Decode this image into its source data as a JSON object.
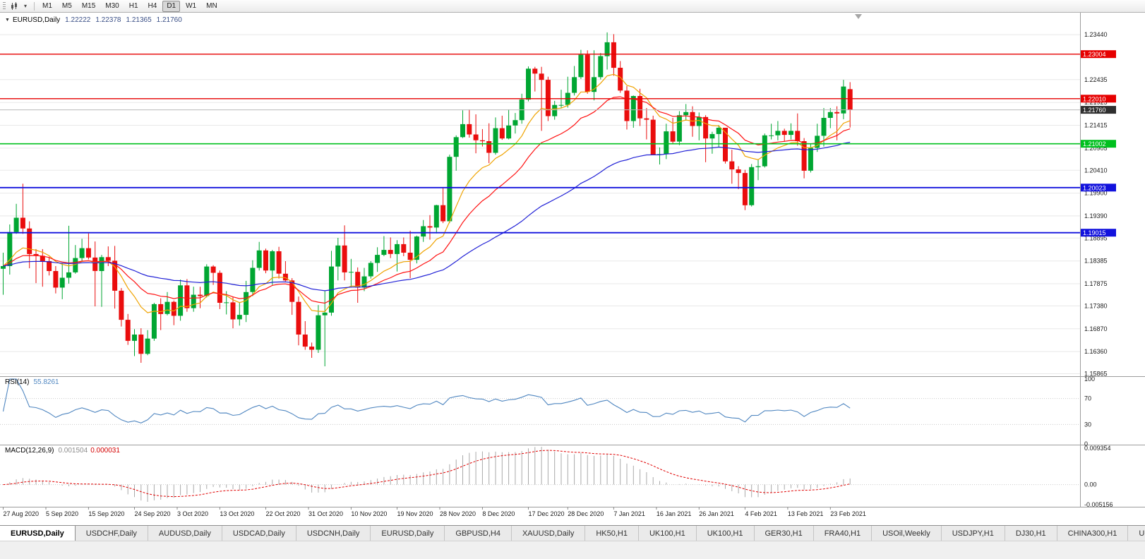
{
  "icons": {
    "one_click_arrow": "▼",
    "caret_down": "▾"
  },
  "toolbar": {
    "timeframes": [
      "M1",
      "M5",
      "M15",
      "M30",
      "H1",
      "H4",
      "D1",
      "W1",
      "MN"
    ],
    "active_timeframe": "D1"
  },
  "chart": {
    "symbol": "EURUSD,Daily",
    "ohlc": {
      "open": "1.22222",
      "high": "1.22378",
      "low": "1.21365",
      "close": "1.21760"
    },
    "colors": {
      "bull": "#00a632",
      "bear": "#ea0d0d"
    },
    "price_axis": {
      "ticks": [
        "1.23440",
        "1.22435",
        "1.21925",
        "1.21415",
        "1.20905",
        "1.20410",
        "1.19900",
        "1.19390",
        "1.18895",
        "1.18385",
        "1.17875",
        "1.17380",
        "1.16870",
        "1.16360",
        "1.15865"
      ]
    },
    "current_price": {
      "price": 1.2176,
      "label": "1.21760",
      "color": "#2f2f2f"
    },
    "hlines": [
      {
        "price": 1.23004,
        "label": "1.23004",
        "color": "#e60000",
        "width": 1.4
      },
      {
        "price": 1.2201,
        "label": "1.22010",
        "color": "#e60000",
        "width": 1.4
      },
      {
        "price": 1.21002,
        "label": "1.21002",
        "color": "#00c01e",
        "width": 1.6
      },
      {
        "price": 1.20023,
        "label": "1.20023",
        "color": "#1212dd",
        "width": 1.8
      },
      {
        "price": 1.19015,
        "label": "1.19015",
        "color": "#1212dd",
        "width": 1.8
      }
    ],
    "date_labels": [
      {
        "label": "27 Aug 2020",
        "index": 0
      },
      {
        "label": "5 Sep 2020",
        "index": 6.5
      },
      {
        "label": "15 Sep 2020",
        "index": 13
      },
      {
        "label": "24 Sep 2020",
        "index": 20
      },
      {
        "label": "3 Oct 2020",
        "index": 26.5
      },
      {
        "label": "13 Oct 2020",
        "index": 33
      },
      {
        "label": "22 Oct 2020",
        "index": 40
      },
      {
        "label": "31 Oct 2020",
        "index": 46.5
      },
      {
        "label": "10 Nov 2020",
        "index": 53
      },
      {
        "label": "19 Nov 2020",
        "index": 60
      },
      {
        "label": "28 Nov 2020",
        "index": 66.5
      },
      {
        "label": "8 Dec 2020",
        "index": 73
      },
      {
        "label": "17 Dec 2020",
        "index": 80
      },
      {
        "label": "28 Dec 2020",
        "index": 86
      },
      {
        "label": "7 Jan 2021",
        "index": 93
      },
      {
        "label": "16 Jan 2021",
        "index": 99.5
      },
      {
        "label": "26 Jan 2021",
        "index": 106
      },
      {
        "label": "4 Feb 2021",
        "index": 113
      },
      {
        "label": "13 Feb 2021",
        "index": 119.5
      },
      {
        "label": "23 Feb 2021",
        "index": 126
      }
    ]
  },
  "indicators": {
    "rsi": {
      "name": "RSI(14)",
      "period": 14,
      "value": "55.8261",
      "color": "#4f86c0",
      "levels": [
        100,
        70,
        30,
        0
      ]
    },
    "macd": {
      "name": "MACD(12,26,9)",
      "fast": 12,
      "slow": 26,
      "signal": 9,
      "value_main": "0.001504",
      "value_signal": "0.000031",
      "scale_max": 0.009354,
      "scale_min": -0.005156,
      "histogram_color": "#a9a9a9",
      "signal_color": "#e00000",
      "axis": [
        {
          "value": 0.009354,
          "label": "0.009354"
        },
        {
          "value": 0,
          "label": "0.00"
        },
        {
          "value": -0.005156,
          "label": "-0.005156"
        }
      ]
    }
  },
  "chart_data": {
    "type": "candlestick",
    "symbol": "EURUSD",
    "timeframe": "Daily",
    "title": "EURUSD,Daily",
    "ohlc_current": [
      1.22222,
      1.22378,
      1.21365,
      1.2176
    ],
    "y_range": [
      1.1581,
      1.2393
    ],
    "moving_averages": [
      {
        "name": "ma-fast-orange",
        "period": 10,
        "color": "#efa300"
      },
      {
        "name": "ma-mid-red",
        "period": 20,
        "color": "#ff1111"
      },
      {
        "name": "ma-slow-blue",
        "period": 55,
        "color": "#2121d6"
      }
    ],
    "candles": [
      [
        1.1821,
        1.1857,
        1.1763,
        1.1827
      ],
      [
        1.1827,
        1.192,
        1.1808,
        1.1903
      ],
      [
        1.1903,
        1.1966,
        1.1899,
        1.1935
      ],
      [
        1.1935,
        1.2011,
        1.1899,
        1.1911
      ],
      [
        1.1911,
        1.1927,
        1.1822,
        1.1854
      ],
      [
        1.1854,
        1.1865,
        1.1789,
        1.185
      ],
      [
        1.185,
        1.1865,
        1.1781,
        1.1838
      ],
      [
        1.1838,
        1.1848,
        1.1806,
        1.1816
      ],
      [
        1.1816,
        1.1827,
        1.1766,
        1.1779
      ],
      [
        1.1779,
        1.1833,
        1.1753,
        1.1801
      ],
      [
        1.1801,
        1.1917,
        1.1788,
        1.1813
      ],
      [
        1.1813,
        1.1874,
        1.181,
        1.1845
      ],
      [
        1.1845,
        1.1888,
        1.1838,
        1.1867
      ],
      [
        1.1867,
        1.19,
        1.1842,
        1.1846
      ],
      [
        1.1846,
        1.1882,
        1.1737,
        1.1816
      ],
      [
        1.1816,
        1.1852,
        1.1736,
        1.1847
      ],
      [
        1.1847,
        1.1871,
        1.1827,
        1.1839
      ],
      [
        1.1839,
        1.1872,
        1.1732,
        1.1772
      ],
      [
        1.1772,
        1.1778,
        1.1692,
        1.1707
      ],
      [
        1.1707,
        1.172,
        1.1651,
        1.166
      ],
      [
        1.166,
        1.1686,
        1.1626,
        1.1674
      ],
      [
        1.1674,
        1.1688,
        1.1611,
        1.1631
      ],
      [
        1.1631,
        1.1684,
        1.1628,
        1.1665
      ],
      [
        1.1665,
        1.1745,
        1.166,
        1.1742
      ],
      [
        1.1742,
        1.1755,
        1.1684,
        1.172
      ],
      [
        1.172,
        1.1769,
        1.1717,
        1.1747
      ],
      [
        1.1747,
        1.175,
        1.1695,
        1.1716
      ],
      [
        1.1716,
        1.1797,
        1.1705,
        1.1784
      ],
      [
        1.1784,
        1.1798,
        1.1725,
        1.1733
      ],
      [
        1.1733,
        1.1781,
        1.1725,
        1.1763
      ],
      [
        1.1763,
        1.1781,
        1.1733,
        1.176
      ],
      [
        1.176,
        1.1831,
        1.1757,
        1.1826
      ],
      [
        1.1826,
        1.1829,
        1.1785,
        1.1812
      ],
      [
        1.1812,
        1.1817,
        1.1731,
        1.1745
      ],
      [
        1.1745,
        1.1771,
        1.1719,
        1.1746
      ],
      [
        1.1746,
        1.1758,
        1.1688,
        1.1708
      ],
      [
        1.1708,
        1.1745,
        1.1694,
        1.1718
      ],
      [
        1.1718,
        1.1794,
        1.1702,
        1.1769
      ],
      [
        1.1769,
        1.184,
        1.176,
        1.1823
      ],
      [
        1.1823,
        1.1881,
        1.1817,
        1.1862
      ],
      [
        1.1862,
        1.1866,
        1.1811,
        1.1817
      ],
      [
        1.1817,
        1.1863,
        1.1785,
        1.186
      ],
      [
        1.186,
        1.187,
        1.1799,
        1.181
      ],
      [
        1.181,
        1.1838,
        1.1793,
        1.1795
      ],
      [
        1.1795,
        1.18,
        1.1718,
        1.1747
      ],
      [
        1.1747,
        1.1759,
        1.165,
        1.1674
      ],
      [
        1.1674,
        1.1704,
        1.164,
        1.1647
      ],
      [
        1.1647,
        1.1656,
        1.1622,
        1.164
      ],
      [
        1.164,
        1.174,
        1.1633,
        1.1717
      ],
      [
        1.1717,
        1.1771,
        1.1603,
        1.1723
      ],
      [
        1.1723,
        1.1861,
        1.1716,
        1.1826
      ],
      [
        1.1826,
        1.189,
        1.1795,
        1.1873
      ],
      [
        1.1873,
        1.1918,
        1.1795,
        1.1813
      ],
      [
        1.1813,
        1.1843,
        1.1779,
        1.1814
      ],
      [
        1.1814,
        1.1824,
        1.1745,
        1.1779
      ],
      [
        1.1779,
        1.1823,
        1.1771,
        1.1804
      ],
      [
        1.1804,
        1.1838,
        1.1799,
        1.1834
      ],
      [
        1.1834,
        1.1869,
        1.1814,
        1.1852
      ],
      [
        1.1852,
        1.1894,
        1.1849,
        1.1863
      ],
      [
        1.1863,
        1.1891,
        1.1845,
        1.1854
      ],
      [
        1.1854,
        1.1885,
        1.1815,
        1.1876
      ],
      [
        1.1876,
        1.1891,
        1.1849,
        1.1857
      ],
      [
        1.1857,
        1.1906,
        1.18,
        1.1841
      ],
      [
        1.1841,
        1.1895,
        1.1833,
        1.1893
      ],
      [
        1.1893,
        1.193,
        1.1881,
        1.1916
      ],
      [
        1.1916,
        1.1941,
        1.1886,
        1.1913
      ],
      [
        1.1913,
        1.1964,
        1.19,
        1.1963
      ],
      [
        1.1963,
        1.2003,
        1.1923,
        1.1927
      ],
      [
        1.1927,
        1.2076,
        1.1923,
        1.2071
      ],
      [
        1.2071,
        1.2119,
        1.204,
        1.2115
      ],
      [
        1.2115,
        1.2175,
        1.2113,
        1.2144
      ],
      [
        1.2144,
        1.2177,
        1.2114,
        1.2121
      ],
      [
        1.2121,
        1.2166,
        1.2079,
        1.2108
      ],
      [
        1.2108,
        1.2133,
        1.2094,
        1.2106
      ],
      [
        1.2106,
        1.2146,
        1.2057,
        1.208
      ],
      [
        1.208,
        1.2159,
        1.2076,
        1.2135
      ],
      [
        1.2135,
        1.2163,
        1.2109,
        1.2112
      ],
      [
        1.2112,
        1.2177,
        1.211,
        1.2141
      ],
      [
        1.2141,
        1.2169,
        1.2123,
        1.2153
      ],
      [
        1.2153,
        1.2212,
        1.2145,
        1.2199
      ],
      [
        1.2199,
        1.2273,
        1.2195,
        1.2268
      ],
      [
        1.2268,
        1.2272,
        1.2217,
        1.2257
      ],
      [
        1.2257,
        1.2272,
        1.2129,
        1.2243
      ],
      [
        1.2243,
        1.225,
        1.2151,
        1.2162
      ],
      [
        1.2162,
        1.2196,
        1.2154,
        1.2187
      ],
      [
        1.2187,
        1.2221,
        1.218,
        1.2187
      ],
      [
        1.2187,
        1.225,
        1.2181,
        1.2214
      ],
      [
        1.2214,
        1.2274,
        1.2208,
        1.2249
      ],
      [
        1.2249,
        1.231,
        1.2245,
        1.2299
      ],
      [
        1.2299,
        1.2309,
        1.2212,
        1.2216
      ],
      [
        1.2216,
        1.2309,
        1.2197,
        1.2249
      ],
      [
        1.2249,
        1.2303,
        1.2244,
        1.2296
      ],
      [
        1.2296,
        1.2349,
        1.2266,
        1.2327
      ],
      [
        1.2327,
        1.2345,
        1.2252,
        1.227
      ],
      [
        1.227,
        1.2285,
        1.2214,
        1.2219
      ],
      [
        1.2219,
        1.2229,
        1.2132,
        1.2151
      ],
      [
        1.2151,
        1.2208,
        1.2136,
        1.2207
      ],
      [
        1.2207,
        1.2223,
        1.214,
        1.2157
      ],
      [
        1.2157,
        1.218,
        1.211,
        1.2154
      ],
      [
        1.2154,
        1.2163,
        1.2075,
        1.2076
      ],
      [
        1.2076,
        1.2092,
        1.2054,
        1.2077
      ],
      [
        1.2077,
        1.2145,
        1.2066,
        1.2128
      ],
      [
        1.2128,
        1.2158,
        1.2101,
        1.2105
      ],
      [
        1.2105,
        1.2173,
        1.2097,
        1.2164
      ],
      [
        1.2164,
        1.2189,
        1.2152,
        1.2171
      ],
      [
        1.2171,
        1.2184,
        1.2116,
        1.214
      ],
      [
        1.214,
        1.217,
        1.2108,
        1.216
      ],
      [
        1.216,
        1.2164,
        1.2059,
        1.2112
      ],
      [
        1.2112,
        1.2127,
        1.2078,
        1.2122
      ],
      [
        1.2122,
        1.2142,
        1.2093,
        1.2136
      ],
      [
        1.2136,
        1.2136,
        1.2056,
        1.2061
      ],
      [
        1.2061,
        1.2087,
        1.2011,
        1.2043
      ],
      [
        1.2043,
        1.205,
        1.1999,
        1.2035
      ],
      [
        1.2035,
        1.2042,
        1.1952,
        1.1963
      ],
      [
        1.1963,
        1.2055,
        1.196,
        1.2048
      ],
      [
        1.2048,
        1.2065,
        1.2019,
        1.205
      ],
      [
        1.205,
        1.2123,
        1.2047,
        1.2119
      ],
      [
        1.2119,
        1.2145,
        1.211,
        1.2119
      ],
      [
        1.2119,
        1.2151,
        1.2108,
        1.2129
      ],
      [
        1.2129,
        1.2134,
        1.2106,
        1.212
      ],
      [
        1.212,
        1.2146,
        1.211,
        1.2129
      ],
      [
        1.2129,
        1.2168,
        1.2096,
        1.2106
      ],
      [
        1.2106,
        1.2113,
        1.2023,
        1.204
      ],
      [
        1.204,
        1.2101,
        1.2036,
        1.2091
      ],
      [
        1.2091,
        1.2145,
        1.2082,
        1.2118
      ],
      [
        1.2118,
        1.218,
        1.2094,
        1.2158
      ],
      [
        1.2158,
        1.218,
        1.2135,
        1.2171
      ],
      [
        1.2171,
        1.2184,
        1.2108,
        1.2168
      ],
      [
        1.2168,
        1.2243,
        1.2155,
        1.2228
      ],
      [
        1.22222,
        1.22378,
        1.21365,
        1.2176
      ]
    ]
  },
  "tabs": [
    {
      "label": "EURUSD,Daily",
      "active": true
    },
    {
      "label": "USDCHF,Daily",
      "active": false
    },
    {
      "label": "AUDUSD,Daily",
      "active": false
    },
    {
      "label": "USDCAD,Daily",
      "active": false
    },
    {
      "label": "USDCNH,Daily",
      "active": false
    },
    {
      "label": "EURUSD,Daily",
      "active": false
    },
    {
      "label": "GBPUSD,H4",
      "active": false
    },
    {
      "label": "XAUUSD,Daily",
      "active": false
    },
    {
      "label": "HK50,H1",
      "active": false
    },
    {
      "label": "UK100,H1",
      "active": false
    },
    {
      "label": "UK100,H1",
      "active": false
    },
    {
      "label": "GER30,H1",
      "active": false
    },
    {
      "label": "FRA40,H1",
      "active": false
    },
    {
      "label": "USOil,Weekly",
      "active": false
    },
    {
      "label": "USDJPY,H1",
      "active": false
    },
    {
      "label": "DJ30,H1",
      "active": false
    },
    {
      "label": "CHINA300,H1",
      "active": false
    },
    {
      "label": "U",
      "active": false
    }
  ]
}
